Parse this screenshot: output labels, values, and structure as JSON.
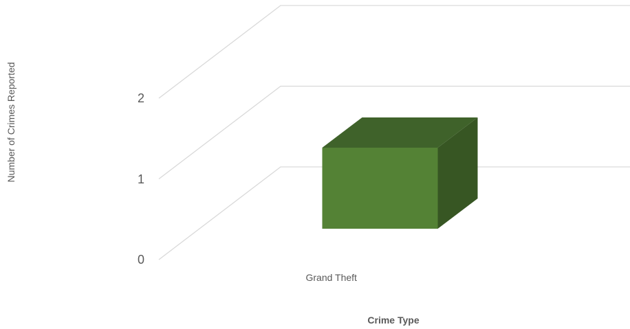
{
  "chart_data": {
    "type": "bar",
    "categories": [
      "Grand Theft"
    ],
    "values": [
      1
    ],
    "title": "",
    "xlabel": "Crime Type",
    "ylabel": "Number of Crimes Reported",
    "ylim": [
      0,
      2
    ],
    "yticks": [
      0,
      1,
      2
    ],
    "grid": true,
    "legend": "none",
    "bar_colors": {
      "front": "#548235",
      "top": "#3f622a",
      "side": "#375623"
    },
    "gridline_color": "#d9d9d9",
    "text_color": "#595959"
  }
}
